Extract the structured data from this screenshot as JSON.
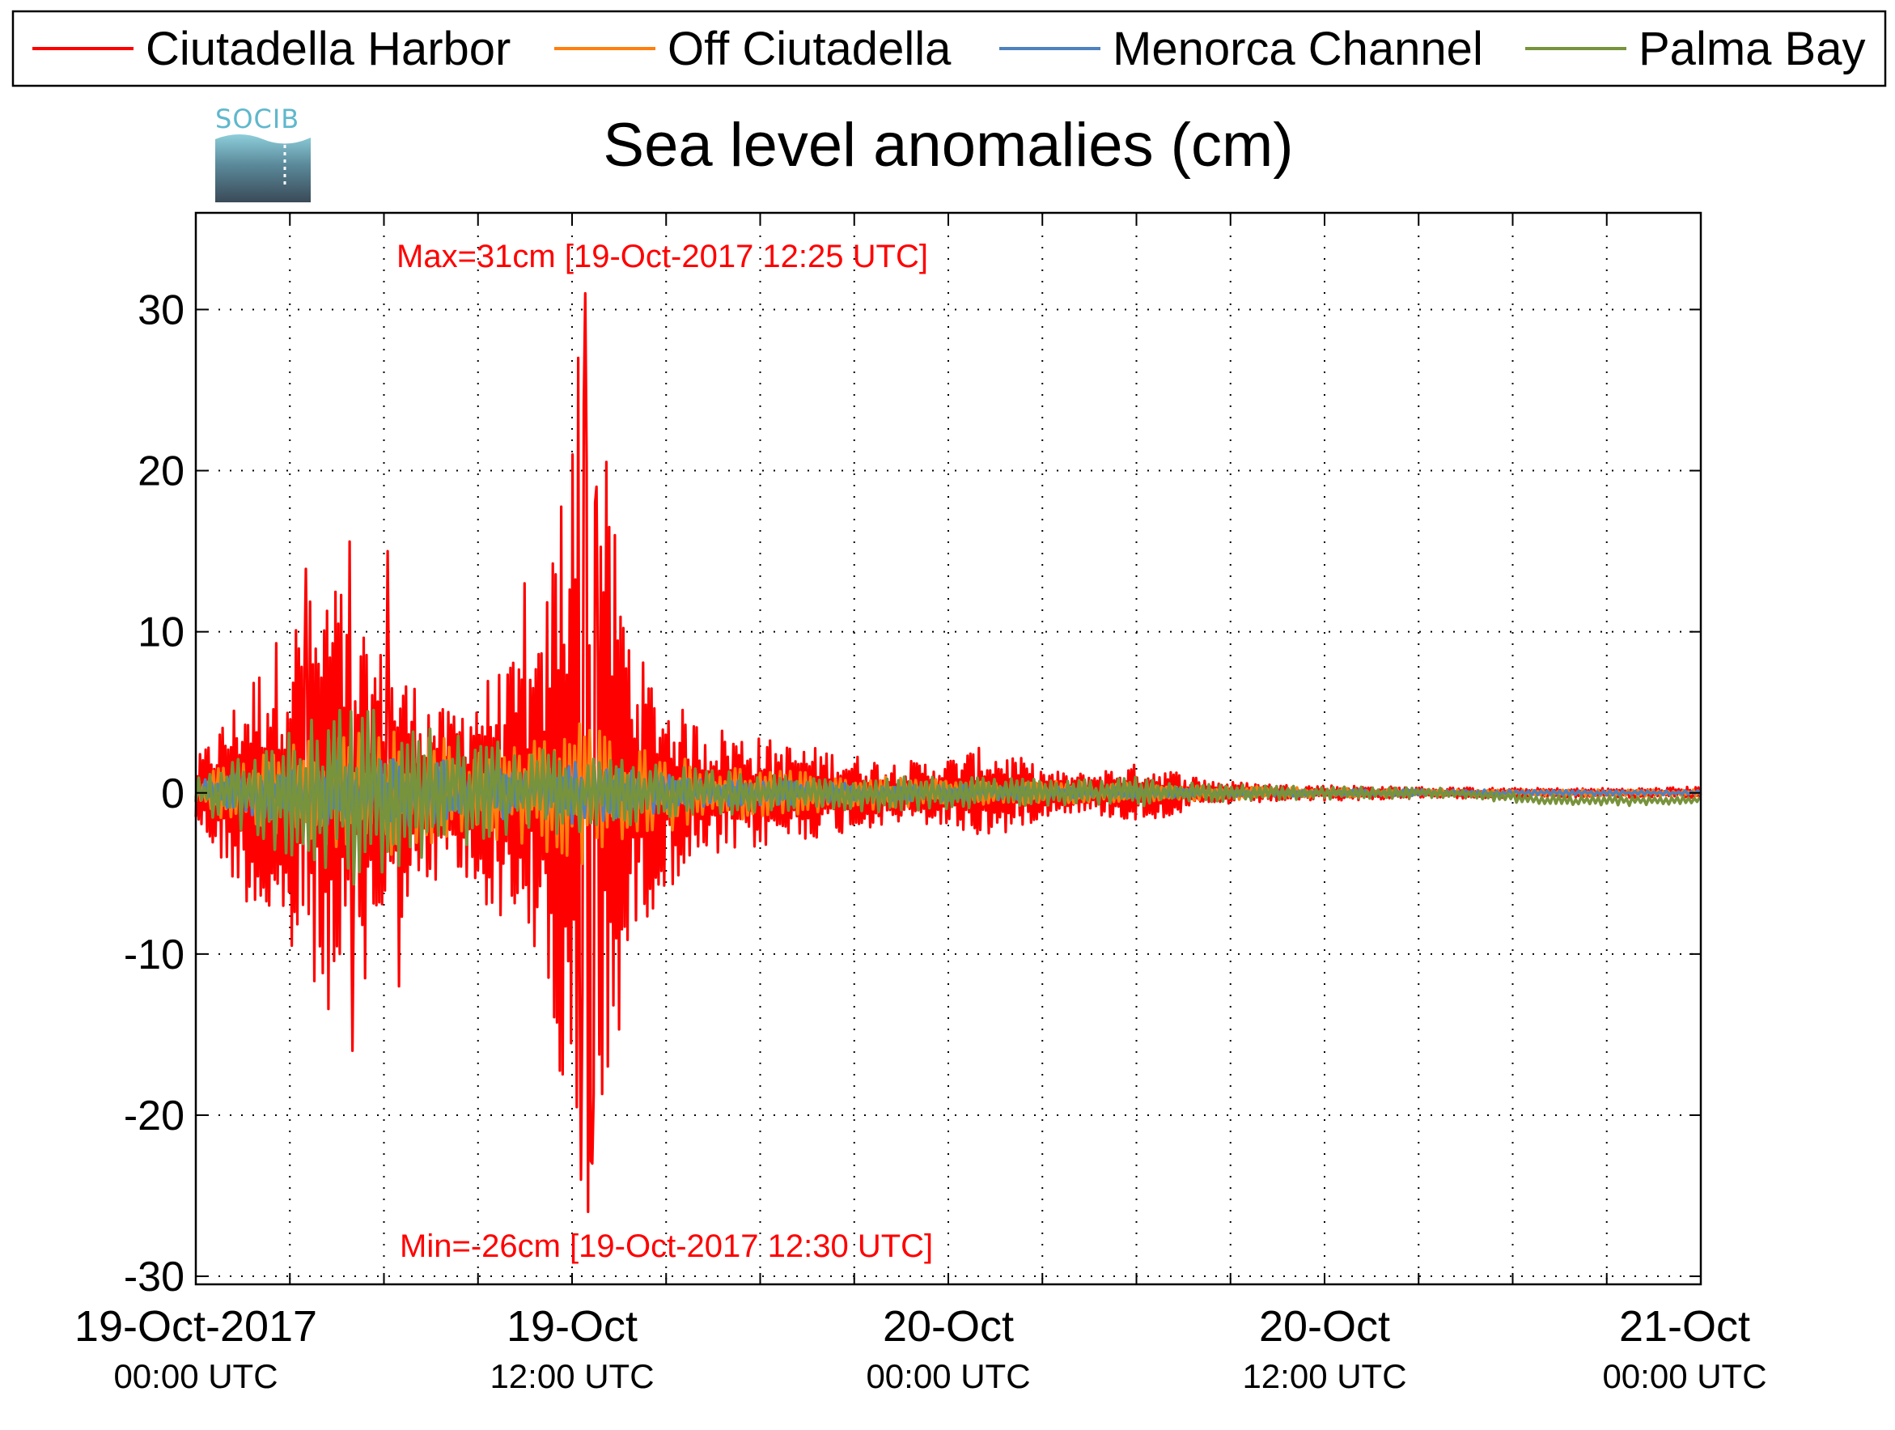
{
  "chart_data": {
    "type": "line",
    "title": "Sea level anomalies (cm)",
    "xlabel": "",
    "ylabel": "",
    "logo_text": "SOCIB",
    "ylim": [
      -30.5,
      36
    ],
    "yticks": [
      -30,
      -20,
      -10,
      0,
      10,
      20,
      30
    ],
    "ytick_labels": [
      "-30",
      "-20",
      "-10",
      "0",
      "10",
      "20",
      "30"
    ],
    "xlim_hours": [
      0,
      48
    ],
    "xticks": [
      {
        "hour": 0,
        "label": "19-Oct-2017",
        "sublabel": "00:00 UTC"
      },
      {
        "hour": 12,
        "label": "19-Oct",
        "sublabel": "12:00 UTC"
      },
      {
        "hour": 24,
        "label": "20-Oct",
        "sublabel": "00:00 UTC"
      },
      {
        "hour": 36,
        "label": "20-Oct",
        "sublabel": "12:00 UTC"
      },
      {
        "hour": 48,
        "label": "21-Oct",
        "sublabel": "00:00 UTC"
      }
    ],
    "grid": true,
    "legend_position": "top",
    "annotations": {
      "max": {
        "text": "Max=31cm [19-Oct-2017 12:25 UTC]",
        "hour": 12.42,
        "value": 31
      },
      "min": {
        "text": "Min=-26cm [19-Oct-2017 12:30 UTC]",
        "hour": 12.5,
        "value": -26
      }
    },
    "series": [
      {
        "name": "Ciutadella Harbor",
        "color": "#ff0000",
        "envelope": [
          [
            0,
            2
          ],
          [
            1,
            5
          ],
          [
            2,
            8
          ],
          [
            3,
            11
          ],
          [
            4,
            13
          ],
          [
            4.5,
            14
          ],
          [
            5,
            10
          ],
          [
            6,
            9
          ],
          [
            7,
            7
          ],
          [
            8,
            5
          ],
          [
            9,
            7
          ],
          [
            10,
            8
          ],
          [
            11,
            9
          ],
          [
            11.5,
            18
          ],
          [
            12,
            26
          ],
          [
            12.4,
            29
          ],
          [
            13,
            22
          ],
          [
            13.5,
            15
          ],
          [
            14,
            9
          ],
          [
            15,
            6
          ],
          [
            16,
            4.5
          ],
          [
            17,
            4
          ],
          [
            18,
            3.5
          ],
          [
            19,
            3
          ],
          [
            20,
            2.8
          ],
          [
            21,
            2.4
          ],
          [
            22,
            2
          ],
          [
            23,
            2
          ],
          [
            24,
            2.2
          ],
          [
            25,
            2.8
          ],
          [
            26,
            2.5
          ],
          [
            27,
            1.5
          ],
          [
            28,
            1.2
          ],
          [
            29,
            1.5
          ],
          [
            30,
            1.8
          ],
          [
            31,
            1.5
          ],
          [
            32,
            1
          ],
          [
            33,
            0.7
          ],
          [
            34,
            0.6
          ],
          [
            35,
            0.5
          ],
          [
            36,
            0.5
          ],
          [
            38,
            0.4
          ],
          [
            40,
            0.35
          ],
          [
            42,
            0.3
          ],
          [
            44,
            0.3
          ],
          [
            46,
            0.3
          ],
          [
            48,
            0.4
          ]
        ],
        "extremes": [
          [
            12.0,
            21
          ],
          [
            12.2,
            27
          ],
          [
            12.42,
            31
          ],
          [
            12.5,
            -26
          ],
          [
            12.3,
            -24
          ],
          [
            12.65,
            -23
          ],
          [
            4.9,
            15.6
          ],
          [
            5.0,
            -16
          ],
          [
            5.4,
            -11.5
          ],
          [
            4.6,
            -10
          ],
          [
            10.5,
            13
          ],
          [
            10.8,
            -9.5
          ],
          [
            6.1,
            15
          ],
          [
            6.5,
            -12
          ],
          [
            12.8,
            19
          ],
          [
            3.9,
            8
          ],
          [
            2.8,
            -7
          ],
          [
            3.5,
            13.9
          ]
        ]
      },
      {
        "name": "Off Ciutadella",
        "color": "#ff7f0e",
        "envelope": [
          [
            0,
            1
          ],
          [
            2,
            2.5
          ],
          [
            4,
            3.5
          ],
          [
            6,
            4
          ],
          [
            8,
            3.5
          ],
          [
            10,
            3
          ],
          [
            11,
            3.5
          ],
          [
            12,
            5
          ],
          [
            13,
            4
          ],
          [
            14,
            3
          ],
          [
            16,
            2
          ],
          [
            18,
            1.5
          ],
          [
            20,
            1.2
          ],
          [
            22,
            1
          ],
          [
            24,
            0.8
          ],
          [
            28,
            0.7
          ],
          [
            32,
            0.5
          ],
          [
            36,
            0.3
          ],
          [
            40,
            0.2
          ],
          [
            44,
            0.2
          ],
          [
            48,
            0.2
          ]
        ]
      },
      {
        "name": "Menorca Channel",
        "color": "#4f81bd",
        "envelope": [
          [
            0,
            0.8
          ],
          [
            2,
            1.5
          ],
          [
            4,
            2
          ],
          [
            6,
            2.2
          ],
          [
            8,
            2
          ],
          [
            10,
            1.8
          ],
          [
            12,
            2
          ],
          [
            14,
            1.5
          ],
          [
            16,
            1
          ],
          [
            18,
            0.8
          ],
          [
            20,
            0.7
          ],
          [
            24,
            0.5
          ],
          [
            28,
            0.4
          ],
          [
            32,
            0.3
          ],
          [
            36,
            0.2
          ],
          [
            40,
            0.2
          ],
          [
            44,
            0.15
          ],
          [
            48,
            0.15
          ]
        ]
      },
      {
        "name": "Palma Bay",
        "color": "#77933c",
        "envelope": [
          [
            0,
            1
          ],
          [
            2,
            3
          ],
          [
            4,
            5
          ],
          [
            5,
            6
          ],
          [
            6,
            5
          ],
          [
            8,
            4
          ],
          [
            10,
            3
          ],
          [
            12,
            2.5
          ],
          [
            14,
            2
          ],
          [
            16,
            1.5
          ],
          [
            18,
            1.2
          ],
          [
            20,
            1
          ],
          [
            22,
            1.2
          ],
          [
            24,
            1
          ],
          [
            26,
            0.9
          ],
          [
            28,
            0.8
          ],
          [
            30,
            1
          ],
          [
            32,
            0.6
          ],
          [
            36,
            0.4
          ],
          [
            40,
            0.3
          ],
          [
            44,
            0.3
          ],
          [
            48,
            0.3
          ]
        ],
        "drift": [
          [
            0,
            0
          ],
          [
            40,
            0
          ],
          [
            42,
            -0.3
          ],
          [
            44,
            -0.5
          ],
          [
            46,
            -0.5
          ],
          [
            48,
            -0.4
          ]
        ]
      }
    ]
  }
}
